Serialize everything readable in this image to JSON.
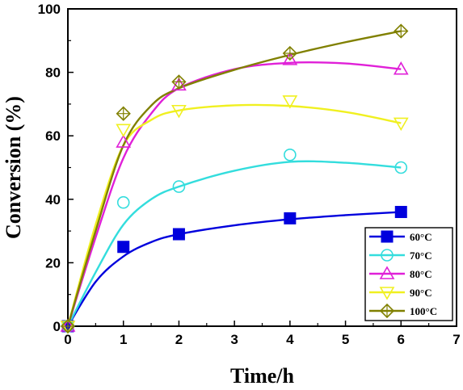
{
  "chart_data": {
    "type": "line",
    "xlabel": "Time/h",
    "ylabel": "Conversion (%)",
    "xlim": [
      0,
      7
    ],
    "ylim": [
      0,
      100
    ],
    "xticks": [
      "0",
      "1",
      "2",
      "3",
      "4",
      "5",
      "6",
      "7"
    ],
    "yticks": [
      "0",
      "20",
      "40",
      "60",
      "80",
      "100"
    ],
    "grid": false,
    "legend_position": "bottom-right",
    "x": [
      0,
      1,
      2,
      4,
      6
    ],
    "series": [
      {
        "name": "60°C",
        "color": "#0000dd",
        "marker": "filled-square",
        "values": [
          0,
          25,
          29,
          34,
          36
        ],
        "curve": [
          [
            0,
            0
          ],
          [
            0.5,
            14
          ],
          [
            1,
            22
          ],
          [
            1.5,
            26.5
          ],
          [
            2,
            29
          ],
          [
            3,
            31.8
          ],
          [
            4,
            33.7
          ],
          [
            5,
            35
          ],
          [
            6,
            36
          ]
        ]
      },
      {
        "name": "70°C",
        "color": "#33dddd",
        "marker": "open-circle",
        "values": [
          0,
          39,
          44,
          54,
          50
        ],
        "curve": [
          [
            0,
            0
          ],
          [
            0.5,
            17
          ],
          [
            1,
            32
          ],
          [
            1.5,
            40
          ],
          [
            2,
            44
          ],
          [
            3,
            49
          ],
          [
            4,
            51.8
          ],
          [
            5,
            51.5
          ],
          [
            6,
            50
          ]
        ]
      },
      {
        "name": "80°C",
        "color": "#e020d8",
        "marker": "open-triangle-up",
        "values": [
          0,
          58,
          76,
          84,
          81
        ],
        "curve": [
          [
            0,
            0
          ],
          [
            0.5,
            28
          ],
          [
            1,
            53
          ],
          [
            1.5,
            67
          ],
          [
            2,
            75
          ],
          [
            3,
            81
          ],
          [
            4,
            83
          ],
          [
            5,
            82.8
          ],
          [
            6,
            81
          ]
        ]
      },
      {
        "name": "90°C",
        "color": "#f0f020",
        "marker": "open-triangle-down",
        "values": [
          0,
          62,
          68,
          71,
          64
        ],
        "curve": [
          [
            0,
            0
          ],
          [
            0.5,
            32
          ],
          [
            1,
            57
          ],
          [
            1.5,
            65
          ],
          [
            2,
            68
          ],
          [
            3,
            69.6
          ],
          [
            4,
            69.4
          ],
          [
            5,
            67.5
          ],
          [
            6,
            64
          ]
        ]
      },
      {
        "name": "100°C",
        "color": "#808000",
        "marker": "open-diamond-plus",
        "values": [
          0,
          67,
          77,
          86,
          93
        ],
        "curve": [
          [
            0,
            0
          ],
          [
            0.5,
            30
          ],
          [
            1,
            57
          ],
          [
            1.5,
            69.5
          ],
          [
            2,
            75
          ],
          [
            3,
            80.8
          ],
          [
            4,
            85.5
          ],
          [
            5,
            89.5
          ],
          [
            6,
            93
          ]
        ]
      }
    ]
  }
}
